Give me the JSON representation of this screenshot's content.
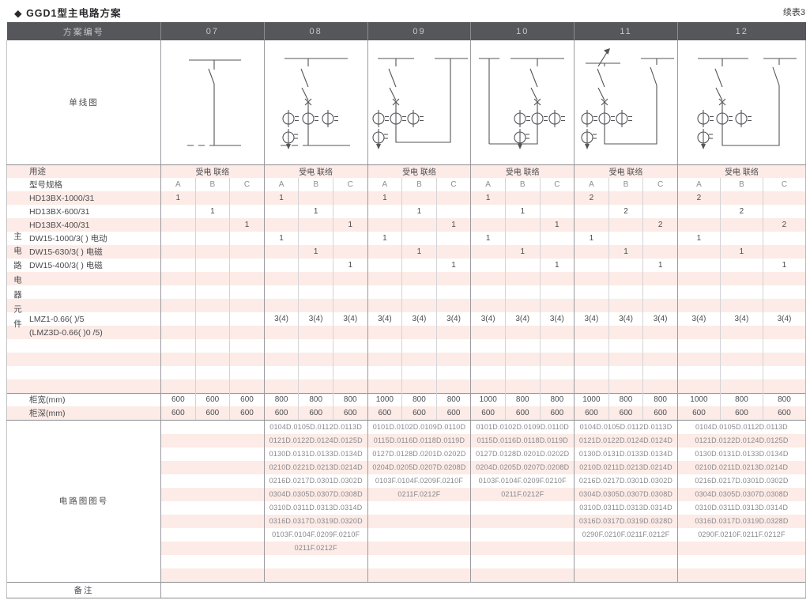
{
  "title": "◆ GGD1型主电路方案",
  "continued_label": "续表3",
  "colors": {
    "header_bg": "#56575b",
    "stripe_pink": "#fcebe6"
  },
  "header": {
    "scheme_label": "方案编号",
    "schemes": [
      "07",
      "08",
      "09",
      "10",
      "11",
      "12"
    ]
  },
  "diagram": {
    "label": "单线图"
  },
  "usage": {
    "label": "用途",
    "values": [
      "受电 联络",
      "受电 联络",
      "受电 联络",
      "受电 联络",
      "受电 联络",
      "受电 联络"
    ]
  },
  "spec": {
    "label": "型号规格",
    "cols": [
      "A",
      "B",
      "C",
      "A",
      "B",
      "C",
      "A",
      "B",
      "C",
      "A",
      "B",
      "C",
      "A",
      "B",
      "C",
      "A",
      "B",
      "C"
    ]
  },
  "side_label": "主电路电器元件",
  "components": [
    {
      "name": "HD13BX-1000/31",
      "values": [
        "1",
        "",
        "",
        "1",
        "",
        "",
        "1",
        "",
        "",
        "1",
        "",
        "",
        "2",
        "",
        "",
        "2",
        "",
        ""
      ]
    },
    {
      "name": "HD13BX-600/31",
      "values": [
        "",
        "1",
        "",
        "",
        "1",
        "",
        "",
        "1",
        "",
        "",
        "1",
        "",
        "",
        "2",
        "",
        "",
        "2",
        ""
      ]
    },
    {
      "name": "HD13BX-400/31",
      "values": [
        "",
        "",
        "1",
        "",
        "",
        "1",
        "",
        "",
        "1",
        "",
        "",
        "1",
        "",
        "",
        "2",
        "",
        "",
        "2"
      ]
    },
    {
      "name": "DW15-1000/3( )  电动",
      "values": [
        "",
        "",
        "",
        "1",
        "",
        "",
        "1",
        "",
        "",
        "1",
        "",
        "",
        "1",
        "",
        "",
        "1",
        "",
        ""
      ]
    },
    {
      "name": "DW15-630/3( )  电磁",
      "values": [
        "",
        "",
        "",
        "",
        "1",
        "",
        "",
        "1",
        "",
        "",
        "1",
        "",
        "",
        "1",
        "",
        "",
        "1",
        ""
      ]
    },
    {
      "name": "DW15-400/3( )  电磁",
      "values": [
        "",
        "",
        "",
        "",
        "",
        "1",
        "",
        "",
        "1",
        "",
        "",
        "1",
        "",
        "",
        "1",
        "",
        "",
        "1"
      ]
    },
    {
      "name": "LMZ1-0.66( )/5",
      "values": [
        "",
        "",
        "",
        "3(4)",
        "3(4)",
        "3(4)",
        "3(4)",
        "3(4)",
        "3(4)",
        "3(4)",
        "3(4)",
        "3(4)",
        "3(4)",
        "3(4)",
        "3(4)",
        "3(4)",
        "3(4)",
        "3(4)"
      ]
    },
    {
      "name": "(LMZ3D-0.66( )0 /5)",
      "values": [
        "",
        "",
        "",
        "",
        "",
        "",
        "",
        "",
        "",
        "",
        "",
        "",
        "",
        "",
        "",
        "",
        "",
        ""
      ]
    }
  ],
  "cabinet_width": {
    "label": "柜宽(mm)",
    "values": [
      "600",
      "600",
      "600",
      "800",
      "800",
      "800",
      "1000",
      "800",
      "800",
      "1000",
      "800",
      "800",
      "1000",
      "800",
      "800",
      "1000",
      "800",
      "800"
    ]
  },
  "cabinet_depth": {
    "label": "柜深(mm)",
    "values": [
      "600",
      "600",
      "600",
      "600",
      "600",
      "600",
      "600",
      "600",
      "600",
      "600",
      "600",
      "600",
      "600",
      "600",
      "600",
      "600",
      "600",
      "600"
    ]
  },
  "diagram_numbers": {
    "label": "电路图图号",
    "columns": [
      [],
      [
        "0104D.0105D.0112D.0113D",
        "0121D.0122D.0124D.0125D",
        "0130D.0131D.0133D.0134D",
        "0210D.0221D.0213D.0214D",
        "0216D.0217D.0301D.0302D",
        "0304D.0305D.0307D.0308D",
        "0310D.0311D.0313D.0314D",
        "0316D.0317D.0319D.0320D",
        "0103F.0104F.0209F.0210F",
        "0211F.0212F"
      ],
      [
        "0101D.0102D.0109D.0110D",
        "0115D.0116D.0118D.0119D",
        "0127D.0128D.0201D.0202D",
        "0204D.0205D.0207D.0208D",
        "0103F.0104F.0209F.0210F",
        "0211F.0212F"
      ],
      [
        "0101D.0102D.0109D.0110D",
        "0115D.0116D.0118D.0119D",
        "0127D.0128D.0201D.0202D",
        "0204D.0205D.0207D.0208D",
        "0103F.0104F.0209F.0210F",
        "0211F.0212F"
      ],
      [
        "0104D.0105D.0112D.0113D",
        "0121D.0122D.0124D.0124D",
        "0130D.0131D.0133D.0134D",
        "0210D.0211D.0213D.0214D",
        "0216D.0217D.0301D.0302D",
        "0304D.0305D.0307D.0308D",
        "0310D.0311D.0313D.0314D",
        "0316D.0317D.0319D.0328D",
        "0290F.0210F.0211F.0212F"
      ],
      [
        "0104D.0105D.0112D.0113D",
        "0121D.0122D.0124D.0125D",
        "0130D.0131D.0133D.0134D",
        "0210D.0211D.0213D.0214D",
        "0216D.0217D.0301D.0302D",
        "0304D.0305D.0307D.0308D",
        "0310D.0311D.0313D.0314D",
        "0316D.0317D.0319D.0328D",
        "0290F.0210F.0211F.0212F"
      ]
    ]
  },
  "remarks": {
    "label": "备注",
    "value": ""
  }
}
